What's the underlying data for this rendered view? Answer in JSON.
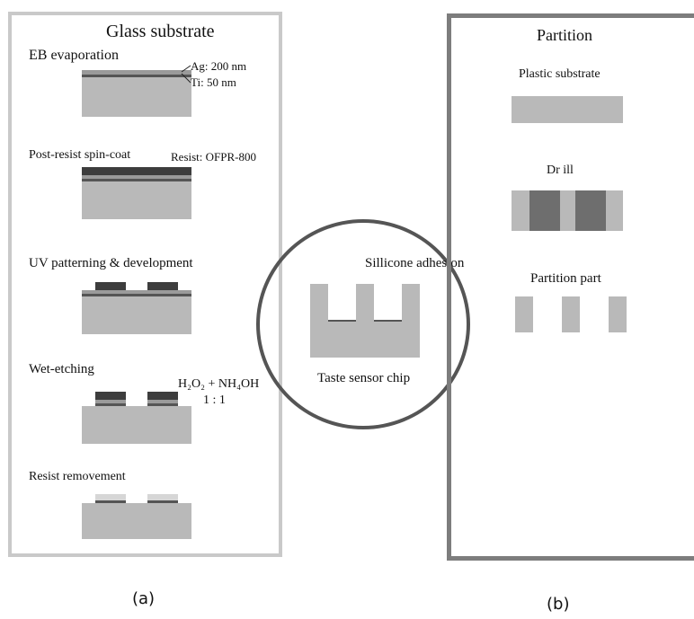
{
  "panel_a": {
    "title": "Glass substrate",
    "steps": [
      {
        "label": "EB evaporation",
        "annotations": [
          "Ag: 200 nm",
          "Ti: 50 nm"
        ]
      },
      {
        "label": "Post-resist spin-coat",
        "annotations": [
          "Resist: OFPR-800"
        ]
      },
      {
        "label": "UV patterning & development"
      },
      {
        "label": "Wet-etching",
        "annotations": [
          "H₂O₂ + NH₄OH",
          "1 : 1"
        ]
      },
      {
        "label": "Resist removement"
      }
    ],
    "caption": "(a)"
  },
  "center": {
    "top_label": "Sillicone adhesion",
    "bottom_label": "Taste sensor chip"
  },
  "panel_b": {
    "title": "Partition",
    "steps": [
      {
        "label": "Plastic substrate"
      },
      {
        "label": "Dr ill"
      },
      {
        "label": "Partition part"
      }
    ],
    "caption": "(b)"
  }
}
